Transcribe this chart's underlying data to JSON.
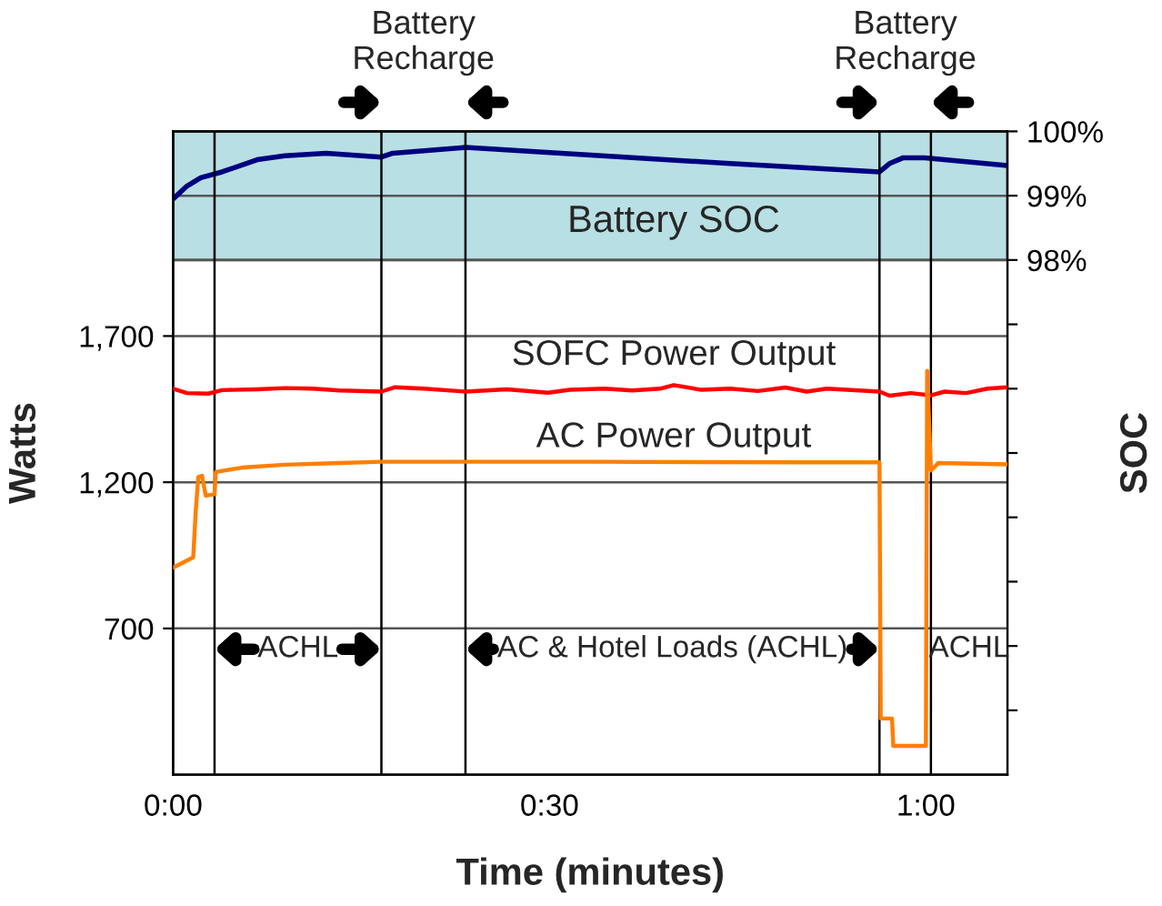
{
  "chart_data": {
    "type": "line",
    "xlabel": "Time (minutes)",
    "ylabel": "Watts",
    "y2label": "SOC",
    "xlim": [
      0,
      66.5
    ],
    "xticks": [
      {
        "value": 0,
        "label": "0:00"
      },
      {
        "value": 30,
        "label": "0:30"
      },
      {
        "value": 60,
        "label": "1:00"
      }
    ],
    "ylim": [
      200,
      2400
    ],
    "yticks": [
      {
        "value": 700,
        "label": "700"
      },
      {
        "value": 1200,
        "label": "1,200"
      },
      {
        "value": 1700,
        "label": "1,700"
      }
    ],
    "y2lim": [
      90,
      100
    ],
    "y2ticks": [
      {
        "value": 91,
        "label": null
      },
      {
        "value": 92,
        "label": null
      },
      {
        "value": 93,
        "label": null
      },
      {
        "value": 94,
        "label": null
      },
      {
        "value": 95,
        "label": null
      },
      {
        "value": 96,
        "label": null
      },
      {
        "value": 97,
        "label": null
      },
      {
        "value": 98,
        "label": "98%"
      },
      {
        "value": 99,
        "label": "99%"
      },
      {
        "value": 100,
        "label": "100%"
      }
    ],
    "grid": "y",
    "series": [
      {
        "name": "SOFC Power Output",
        "color": "#ff0000",
        "x": [
          0,
          1.1,
          2.8,
          3.9,
          6.7,
          8.9,
          11.1,
          13.3,
          16.6,
          17.7,
          20,
          23.3,
          26.6,
          29.9,
          31.6,
          34.4,
          36.6,
          38.8,
          39.9,
          42.1,
          44.4,
          46.6,
          48.8,
          50.5,
          52.1,
          56.3,
          57.1,
          58.8,
          60.4,
          61.5,
          63.2,
          64.9,
          66.5
        ],
        "values": [
          1520,
          1505,
          1503,
          1515,
          1518,
          1522,
          1520,
          1514,
          1510,
          1525,
          1520,
          1510,
          1518,
          1506,
          1516,
          1520,
          1514,
          1520,
          1532,
          1516,
          1520,
          1512,
          1524,
          1510,
          1520,
          1510,
          1496,
          1505,
          1497,
          1510,
          1505,
          1520,
          1525
        ]
      },
      {
        "name": "AC Power Output",
        "color": "#ff7f00",
        "x": [
          0,
          1.6,
          1.8,
          2.0,
          2.3,
          2.6,
          3.3,
          3.4,
          5.5,
          8.9,
          13.3,
          16.6,
          33.3,
          49.9,
          56.3,
          56.4,
          57.3,
          57.4,
          60.0,
          60.1,
          60.4,
          61.0,
          66.5
        ],
        "values": [
          908,
          943,
          1100,
          1217,
          1222,
          1154,
          1159,
          1235,
          1250,
          1260,
          1266,
          1270,
          1270,
          1268,
          1268,
          392,
          392,
          298,
          298,
          1581,
          1240,
          1266,
          1261
        ]
      },
      {
        "color": "#000080",
        "axis": "y2",
        "x": [
          0,
          1.1,
          2.2,
          3.9,
          6.7,
          8.9,
          12.2,
          16.6,
          17.5,
          23.3,
          33.3,
          44.4,
          56.3,
          57.1,
          58.2,
          59.9,
          66.5
        ],
        "values": [
          98.95,
          99.15,
          99.28,
          99.37,
          99.56,
          99.62,
          99.66,
          99.6,
          99.66,
          99.75,
          99.63,
          99.5,
          99.37,
          99.5,
          99.59,
          99.59,
          99.47
        ]
      }
    ],
    "bands": [
      {
        "axis": "y2",
        "from": 98,
        "to": 100,
        "label": "Battery SOC",
        "color": "#b8dfe3"
      }
    ],
    "ref_lines": [
      {
        "axis": "x",
        "value": 3.3
      },
      {
        "axis": "x",
        "value": 16.6
      },
      {
        "axis": "x",
        "value": 23.3
      },
      {
        "axis": "x",
        "value": 56.3
      },
      {
        "axis": "x",
        "value": 60.4
      }
    ],
    "annotations": [
      "ACHL",
      "AC & Hotel Loads (ACHL)",
      "ACHL",
      "Battery\nRecharge",
      "Battery\nRecharge"
    ]
  }
}
